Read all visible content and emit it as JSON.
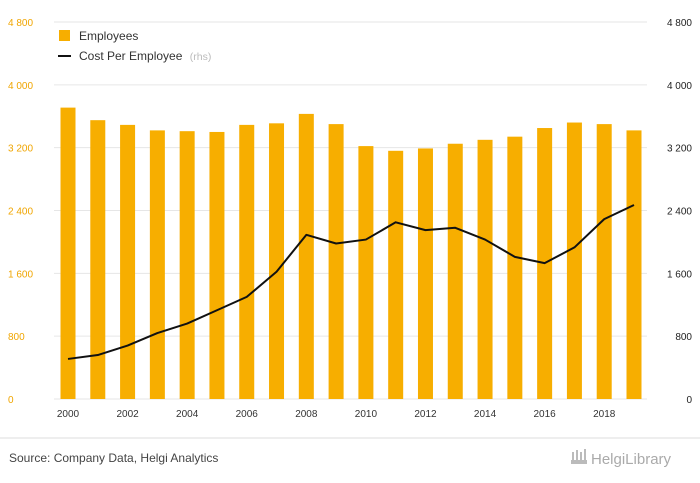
{
  "chart_data": {
    "type": "bar",
    "categories": [
      "2000",
      "2001",
      "2002",
      "2003",
      "2004",
      "2005",
      "2006",
      "2007",
      "2008",
      "2009",
      "2010",
      "2011",
      "2012",
      "2013",
      "2014",
      "2015",
      "2016",
      "2017",
      "2018",
      "2019"
    ],
    "x_tick_labels": [
      "2000",
      "2002",
      "2004",
      "2006",
      "2008",
      "2010",
      "2012",
      "2014",
      "2016",
      "2018"
    ],
    "series": [
      {
        "name": "Employees",
        "type": "bar",
        "axis": "left",
        "color": "#f7ae00",
        "values": [
          3710,
          3550,
          3490,
          3420,
          3410,
          3400,
          3490,
          3510,
          3630,
          3500,
          3220,
          3160,
          3190,
          3250,
          3300,
          3340,
          3450,
          3520,
          3500,
          3420
        ]
      },
      {
        "name": "Cost Per Employee",
        "name_note": "(rhs)",
        "type": "line",
        "axis": "right",
        "color": "#111111",
        "values": [
          510,
          560,
          680,
          840,
          960,
          1130,
          1300,
          1620,
          2090,
          1980,
          2030,
          2250,
          2150,
          2180,
          2030,
          1810,
          1730,
          1930,
          2290,
          2470
        ]
      }
    ],
    "y_left": {
      "min": 0,
      "max": 4800,
      "ticks": [
        0,
        800,
        1600,
        2400,
        3200,
        4000,
        4800
      ],
      "tick_labels": [
        "0",
        "800",
        "1 600",
        "2 400",
        "3 200",
        "4 000",
        "4 800"
      ]
    },
    "y_right": {
      "min": 0,
      "max": 4800,
      "ticks": [
        0,
        800,
        1600,
        2400,
        3200,
        4000,
        4800
      ],
      "tick_labels": [
        "0",
        "800",
        "1 600",
        "2 400",
        "3 200",
        "4 000",
        "4 800"
      ]
    },
    "grid": true,
    "legend_position": "top-left"
  },
  "footer": {
    "source": "Source: Company Data, Helgi Analytics",
    "brand": "HelgiLibrary"
  }
}
